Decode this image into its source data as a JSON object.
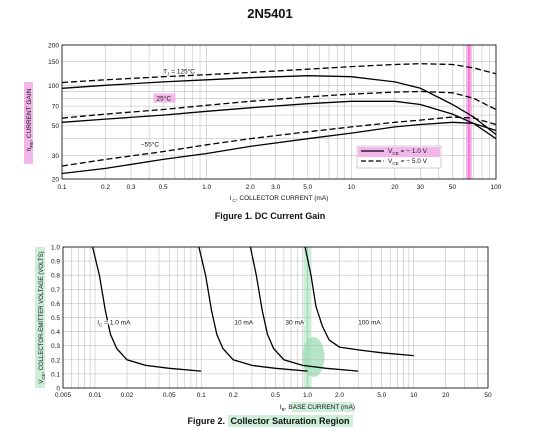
{
  "part_number": "2N5401",
  "highlights": {
    "pink": "#ff66cc",
    "pink_light": "#f3b6ea",
    "green": "#9fdcb4",
    "green_light": "#cdeed9"
  },
  "chart_data": [
    {
      "type": "line",
      "caption_prefix": "Figure 1.",
      "caption_title": "DC Current Gain",
      "xlabel": "I C, COLLECTOR CURRENT (mA)",
      "ylabel": "hFE, CURRENT GAIN",
      "xscale": "log",
      "yscale": "log",
      "xlim": [
        0.1,
        100
      ],
      "ylim": [
        20,
        200
      ],
      "x_ticks": [
        "0.1",
        "0.2",
        "0.3",
        "0.5",
        "1.0",
        "2.0",
        "3.0",
        "5.0",
        "10",
        "20",
        "30",
        "50",
        "100"
      ],
      "x_tick_values": [
        0.1,
        0.2,
        0.3,
        0.5,
        1,
        2,
        3,
        5,
        10,
        20,
        30,
        50,
        100
      ],
      "y_ticks": [
        "20",
        "30",
        "50",
        "70",
        "100",
        "150",
        "200"
      ],
      "y_tick_values": [
        20,
        30,
        50,
        70,
        100,
        150,
        200
      ],
      "grid": true,
      "legend_position": "bottom-right",
      "legend": [
        {
          "label": "VCE = − 1.0 V",
          "style": "solid"
        },
        {
          "label": "VCE = − 5.0 V",
          "style": "dashed"
        }
      ],
      "annotations": [
        {
          "text": "TJ = 125°C",
          "x": 0.5,
          "y": 123
        },
        {
          "text": "25°C",
          "x": 0.45,
          "y": 77
        },
        {
          "text": "−55°C",
          "x": 0.35,
          "y": 35
        }
      ],
      "series": [
        {
          "style": "dashed",
          "x": [
            0.1,
            0.2,
            0.5,
            1,
            2,
            5,
            10,
            20,
            30,
            50,
            70,
            100
          ],
          "y": [
            105,
            110,
            116,
            120,
            125,
            132,
            138,
            143,
            145,
            143,
            135,
            122
          ]
        },
        {
          "style": "solid",
          "x": [
            0.1,
            0.2,
            0.5,
            1,
            2,
            5,
            10,
            20,
            30,
            50,
            70,
            100
          ],
          "y": [
            95,
            100,
            106,
            110,
            114,
            118,
            116,
            106,
            95,
            72,
            58,
            43
          ]
        },
        {
          "style": "dashed",
          "x": [
            0.1,
            0.2,
            0.5,
            1,
            2,
            5,
            10,
            20,
            30,
            50,
            70,
            100
          ],
          "y": [
            57,
            61,
            66,
            71,
            76,
            82,
            86,
            89,
            90,
            88,
            80,
            66
          ]
        },
        {
          "style": "solid",
          "x": [
            0.1,
            0.2,
            0.5,
            1,
            2,
            5,
            10,
            20,
            30,
            50,
            70,
            100
          ],
          "y": [
            53,
            56,
            60,
            64,
            68,
            73,
            76,
            76,
            72,
            61,
            52,
            40
          ]
        },
        {
          "style": "dashed",
          "x": [
            0.1,
            0.2,
            0.5,
            1,
            2,
            5,
            10,
            20,
            30,
            50,
            70,
            100
          ],
          "y": [
            25,
            28,
            32,
            36,
            40,
            45,
            49,
            53,
            55,
            58,
            57,
            51
          ]
        },
        {
          "style": "solid",
          "x": [
            0.1,
            0.2,
            0.5,
            1,
            2,
            5,
            10,
            20,
            30,
            50,
            70,
            100
          ],
          "y": [
            22,
            24,
            28,
            31,
            35,
            40,
            44,
            49,
            51,
            53,
            52,
            46
          ]
        }
      ],
      "marked_x": 65
    },
    {
      "type": "line",
      "caption_prefix": "Figure 2.",
      "caption_title": "Collector Saturation Region",
      "xlabel": "IB, BASE CURRENT (mA)",
      "ylabel": "VCE, COLLECTOR-EMITTER VOLTAGE (VOLTS)",
      "xscale": "log",
      "yscale": "linear",
      "xlim": [
        0.005,
        50
      ],
      "ylim": [
        0,
        1.0
      ],
      "x_ticks": [
        "0.005",
        "0.01",
        "0.02",
        "0.05",
        "0.1",
        "0.2",
        "0.5",
        "1.0",
        "2.0",
        "5.0",
        "10",
        "20",
        "50"
      ],
      "x_tick_values": [
        0.005,
        0.01,
        0.02,
        0.05,
        0.1,
        0.2,
        0.5,
        1,
        2,
        5,
        10,
        20,
        50
      ],
      "y_ticks": [
        "0",
        "0.1",
        "0.2",
        "0.3",
        "0.4",
        "0.5",
        "0.6",
        "0.7",
        "0.8",
        "0.9",
        "1.0"
      ],
      "y_tick_values": [
        0,
        0.1,
        0.2,
        0.3,
        0.4,
        0.5,
        0.6,
        0.7,
        0.8,
        0.9,
        1.0
      ],
      "grid": true,
      "annotations": [
        {
          "text": "IC = 1.0 mA",
          "x": 0.0105,
          "y": 0.45
        },
        {
          "text": "10 mA",
          "x": 0.205,
          "y": 0.45
        },
        {
          "text": "30 mA",
          "x": 0.62,
          "y": 0.45
        },
        {
          "text": "100 mA",
          "x": 3.0,
          "y": 0.45
        }
      ],
      "series": [
        {
          "name": "IC = 1.0 mA",
          "x": [
            0.0095,
            0.011,
            0.0125,
            0.014,
            0.016,
            0.02,
            0.03,
            0.05,
            0.1
          ],
          "y": [
            1.0,
            0.8,
            0.55,
            0.38,
            0.28,
            0.2,
            0.16,
            0.14,
            0.12
          ]
        },
        {
          "name": "10 mA",
          "x": [
            0.095,
            0.11,
            0.125,
            0.14,
            0.16,
            0.2,
            0.3,
            0.5,
            1.0
          ],
          "y": [
            1.0,
            0.8,
            0.55,
            0.38,
            0.28,
            0.2,
            0.16,
            0.14,
            0.12
          ]
        },
        {
          "name": "30 mA",
          "x": [
            0.29,
            0.33,
            0.375,
            0.42,
            0.48,
            0.6,
            0.9,
            1.5,
            3.0
          ],
          "y": [
            1.0,
            0.8,
            0.55,
            0.38,
            0.28,
            0.2,
            0.16,
            0.14,
            0.12
          ]
        },
        {
          "name": "100 mA",
          "x": [
            0.95,
            1.08,
            1.2,
            1.38,
            1.6,
            2.0,
            3.0,
            5.0,
            10.0
          ],
          "y": [
            1.0,
            0.8,
            0.58,
            0.44,
            0.34,
            0.29,
            0.27,
            0.25,
            0.23
          ]
        }
      ],
      "marked_x": 1.0
    }
  ]
}
